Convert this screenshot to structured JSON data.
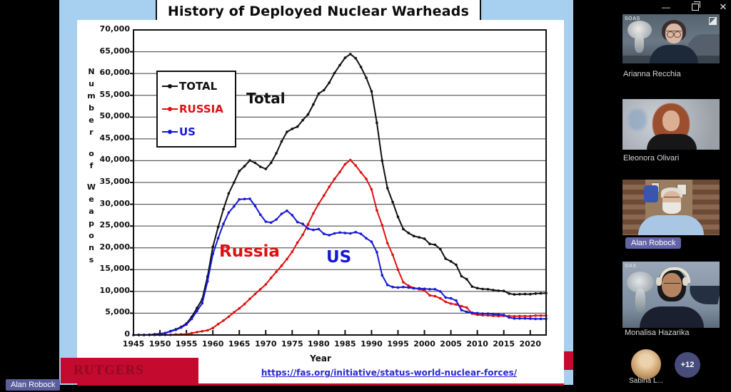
{
  "window": {
    "controls": {
      "minimize": "—",
      "close": "✕"
    }
  },
  "presenter_badge": "Alan Robock",
  "slide": {
    "title": "History of Deployed Nuclear Warheads",
    "footer_logo": "RUTGERS",
    "source_url": "https://fas.org/initiative/status-world-nuclear-forces/"
  },
  "chart_data": {
    "type": "line",
    "title": "History of Deployed Nuclear Warheads",
    "xlabel": "Year",
    "ylabel": "Number of Weapons",
    "ylim": [
      0,
      70000
    ],
    "ytick_step": 5000,
    "x_start": 1945,
    "x_end": 2023,
    "xticks": [
      1945,
      1950,
      1955,
      1960,
      1965,
      1970,
      1975,
      1980,
      1985,
      1990,
      1995,
      2000,
      2005,
      2010,
      2015,
      2020
    ],
    "grid": true,
    "legend_position": "upper-left",
    "series": [
      {
        "name": "TOTAL",
        "label": "Total",
        "color": "#101010",
        "values": [
          2,
          9,
          13,
          50,
          171,
          305,
          465,
          890,
          1290,
          1855,
          2610,
          4145,
          6180,
          8200,
          13400,
          20240,
          24760,
          28870,
          32500,
          35000,
          37600,
          38750,
          40050,
          39500,
          38600,
          38100,
          39500,
          41700,
          44400,
          46600,
          47300,
          47800,
          49300,
          50600,
          52900,
          55400,
          56200,
          57900,
          60100,
          61900,
          63600,
          64460,
          63500,
          61500,
          59000,
          55900,
          48700,
          40000,
          33700,
          30500,
          27100,
          24300,
          23400,
          22700,
          22400,
          22100,
          20900,
          20700,
          19700,
          17500,
          16900,
          16100,
          13500,
          12800,
          11100,
          10750,
          10550,
          10500,
          10300,
          10150,
          10100,
          9500,
          9300,
          9350,
          9380,
          9365,
          9500,
          9550,
          9600
        ]
      },
      {
        "name": "RUSSIA",
        "label": "Russia",
        "color": "#dd1111",
        "values": [
          0,
          0,
          0,
          0,
          1,
          5,
          25,
          50,
          120,
          150,
          200,
          430,
          660,
          870,
          1060,
          1600,
          2500,
          3300,
          4200,
          5200,
          6100,
          7100,
          8300,
          9400,
          10500,
          11600,
          13100,
          14500,
          15900,
          17400,
          19100,
          21200,
          23000,
          25400,
          27900,
          30100,
          32000,
          34000,
          35800,
          37400,
          39200,
          40160,
          38900,
          37300,
          35800,
          33400,
          28600,
          25200,
          21100,
          18400,
          15000,
          12100,
          11300,
          10800,
          10500,
          10200,
          9100,
          8900,
          8400,
          7600,
          7200,
          7000,
          6600,
          6300,
          4900,
          4650,
          4550,
          4500,
          4400,
          4350,
          4400,
          4350,
          4300,
          4350,
          4330,
          4315,
          4450,
          4450,
          4450
        ]
      },
      {
        "name": "US",
        "label": "US",
        "color": "#1717d6",
        "values": [
          2,
          9,
          13,
          50,
          170,
          300,
          440,
          840,
          1170,
          1700,
          2400,
          3700,
          5500,
          7300,
          12300,
          18600,
          22200,
          25500,
          28100,
          29500,
          31100,
          31200,
          31255,
          29600,
          27600,
          26000,
          25800,
          26500,
          27800,
          28500,
          27500,
          25900,
          25500,
          24400,
          24100,
          24300,
          23200,
          22900,
          23300,
          23500,
          23400,
          23300,
          23600,
          23200,
          22200,
          21400,
          19000,
          13700,
          11500,
          11000,
          10900,
          11000,
          10900,
          10700,
          10700,
          10600,
          10500,
          10500,
          10000,
          8600,
          8400,
          7900,
          5700,
          5300,
          5100,
          5000,
          4900,
          4900,
          4800,
          4700,
          4600,
          4000,
          3800,
          3800,
          3800,
          3750,
          3700,
          3700,
          3700
        ]
      }
    ]
  },
  "sidebar": {
    "participants": [
      {
        "name": "Arianna Recchia",
        "overlay": "SOAS"
      },
      {
        "name": "Eleonora Olivari",
        "overlay": ""
      },
      {
        "name": "Alan Robock",
        "overlay": ""
      },
      {
        "name": "Monalisa Hazarika",
        "overlay": "OAS"
      }
    ],
    "more": {
      "avatar_name": "Sabina L...",
      "overflow_count": "+12"
    }
  }
}
